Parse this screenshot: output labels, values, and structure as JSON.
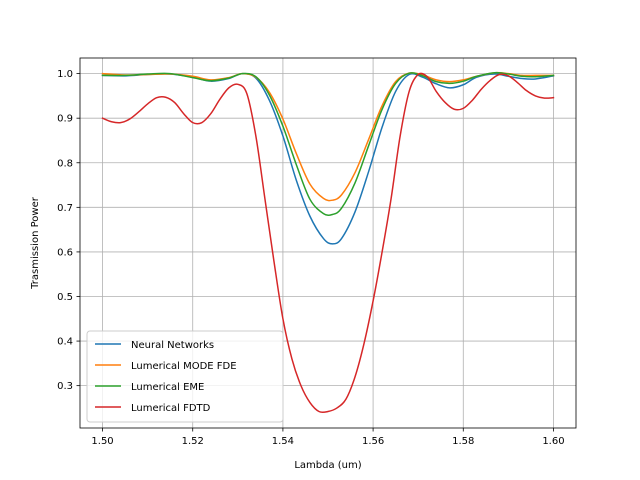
{
  "chart_data": {
    "type": "line",
    "xlabel": "Lambda (um)",
    "ylabel": "Trasmission Power",
    "xlim": [
      1.495,
      1.605
    ],
    "ylim": [
      0.205,
      1.035
    ],
    "xticks": [
      1.5,
      1.52,
      1.54,
      1.56,
      1.58,
      1.6
    ],
    "xtick_labels": [
      "1.50",
      "1.52",
      "1.54",
      "1.56",
      "1.58",
      "1.60"
    ],
    "yticks": [
      0.3,
      0.4,
      0.5,
      0.6,
      0.7,
      0.8,
      0.9,
      1.0
    ],
    "ytick_labels": [
      "0.3",
      "0.4",
      "0.5",
      "0.6",
      "0.7",
      "0.8",
      "0.9",
      "1.0"
    ],
    "grid": true,
    "legend_position": "lower-left",
    "series": [
      {
        "name": "Neural Networks",
        "color": "#1f77b4",
        "x": [
          1.5,
          1.505,
          1.51,
          1.515,
          1.52,
          1.524,
          1.528,
          1.531,
          1.534,
          1.537,
          1.54,
          1.543,
          1.546,
          1.549,
          1.551,
          1.553,
          1.556,
          1.559,
          1.562,
          1.565,
          1.568,
          1.571,
          1.574,
          1.577,
          1.58,
          1.583,
          1.587,
          1.59,
          1.593,
          1.596,
          1.6
        ],
        "y": [
          0.996,
          0.995,
          0.998,
          0.999,
          0.992,
          0.983,
          0.989,
          1.0,
          0.99,
          0.94,
          0.86,
          0.76,
          0.68,
          0.63,
          0.618,
          0.63,
          0.69,
          0.78,
          0.88,
          0.96,
          0.998,
          0.992,
          0.977,
          0.968,
          0.975,
          0.992,
          0.999,
          0.994,
          0.989,
          0.988,
          0.995
        ]
      },
      {
        "name": "Lumerical MODE FDE",
        "color": "#ff7f0e",
        "x": [
          1.5,
          1.505,
          1.51,
          1.515,
          1.52,
          1.524,
          1.528,
          1.531,
          1.534,
          1.537,
          1.54,
          1.543,
          1.546,
          1.549,
          1.551,
          1.553,
          1.556,
          1.559,
          1.562,
          1.565,
          1.568,
          1.571,
          1.574,
          1.577,
          1.58,
          1.583,
          1.587,
          1.59,
          1.593,
          1.596,
          1.6
        ],
        "y": [
          1.0,
          0.997,
          0.998,
          0.999,
          0.994,
          0.986,
          0.991,
          1.0,
          0.992,
          0.958,
          0.898,
          0.82,
          0.752,
          0.72,
          0.716,
          0.728,
          0.778,
          0.852,
          0.928,
          0.982,
          1.001,
          0.997,
          0.986,
          0.982,
          0.986,
          0.994,
          1.002,
          1.0,
          0.996,
          0.996,
          0.996
        ]
      },
      {
        "name": "Lumerical EME",
        "color": "#2ca02c",
        "x": [
          1.5,
          1.505,
          1.51,
          1.515,
          1.52,
          1.524,
          1.528,
          1.531,
          1.534,
          1.537,
          1.54,
          1.543,
          1.546,
          1.549,
          1.551,
          1.553,
          1.556,
          1.559,
          1.562,
          1.565,
          1.568,
          1.571,
          1.574,
          1.577,
          1.58,
          1.583,
          1.587,
          1.59,
          1.593,
          1.596,
          1.6
        ],
        "y": [
          0.996,
          0.996,
          0.999,
          1.0,
          0.991,
          0.984,
          0.99,
          1.0,
          0.993,
          0.952,
          0.882,
          0.795,
          0.718,
          0.686,
          0.684,
          0.698,
          0.755,
          0.838,
          0.92,
          0.978,
          1.001,
          0.995,
          0.982,
          0.978,
          0.983,
          0.994,
          1.002,
          0.999,
          0.994,
          0.993,
          0.996
        ]
      },
      {
        "name": "Lumerical FDTD",
        "color": "#d62728",
        "x": [
          1.5,
          1.502,
          1.504,
          1.506,
          1.508,
          1.51,
          1.512,
          1.514,
          1.516,
          1.518,
          1.52,
          1.522,
          1.524,
          1.526,
          1.528,
          1.53,
          1.532,
          1.534,
          1.536,
          1.538,
          1.54,
          1.542,
          1.544,
          1.546,
          1.548,
          1.55,
          1.552,
          1.554,
          1.556,
          1.558,
          1.56,
          1.562,
          1.564,
          1.566,
          1.568,
          1.57,
          1.572,
          1.574,
          1.576,
          1.578,
          1.58,
          1.582,
          1.584,
          1.586,
          1.588,
          1.59,
          1.592,
          1.594,
          1.596,
          1.598,
          1.6
        ],
        "y": [
          0.9,
          0.892,
          0.89,
          0.898,
          0.914,
          0.932,
          0.946,
          0.947,
          0.935,
          0.91,
          0.89,
          0.89,
          0.91,
          0.942,
          0.968,
          0.976,
          0.955,
          0.86,
          0.72,
          0.58,
          0.45,
          0.36,
          0.3,
          0.262,
          0.242,
          0.242,
          0.25,
          0.27,
          0.32,
          0.395,
          0.49,
          0.6,
          0.72,
          0.86,
          0.96,
          0.998,
          0.993,
          0.96,
          0.935,
          0.92,
          0.922,
          0.94,
          0.965,
          0.985,
          0.998,
          0.995,
          0.98,
          0.962,
          0.95,
          0.945,
          0.946
        ]
      }
    ]
  }
}
